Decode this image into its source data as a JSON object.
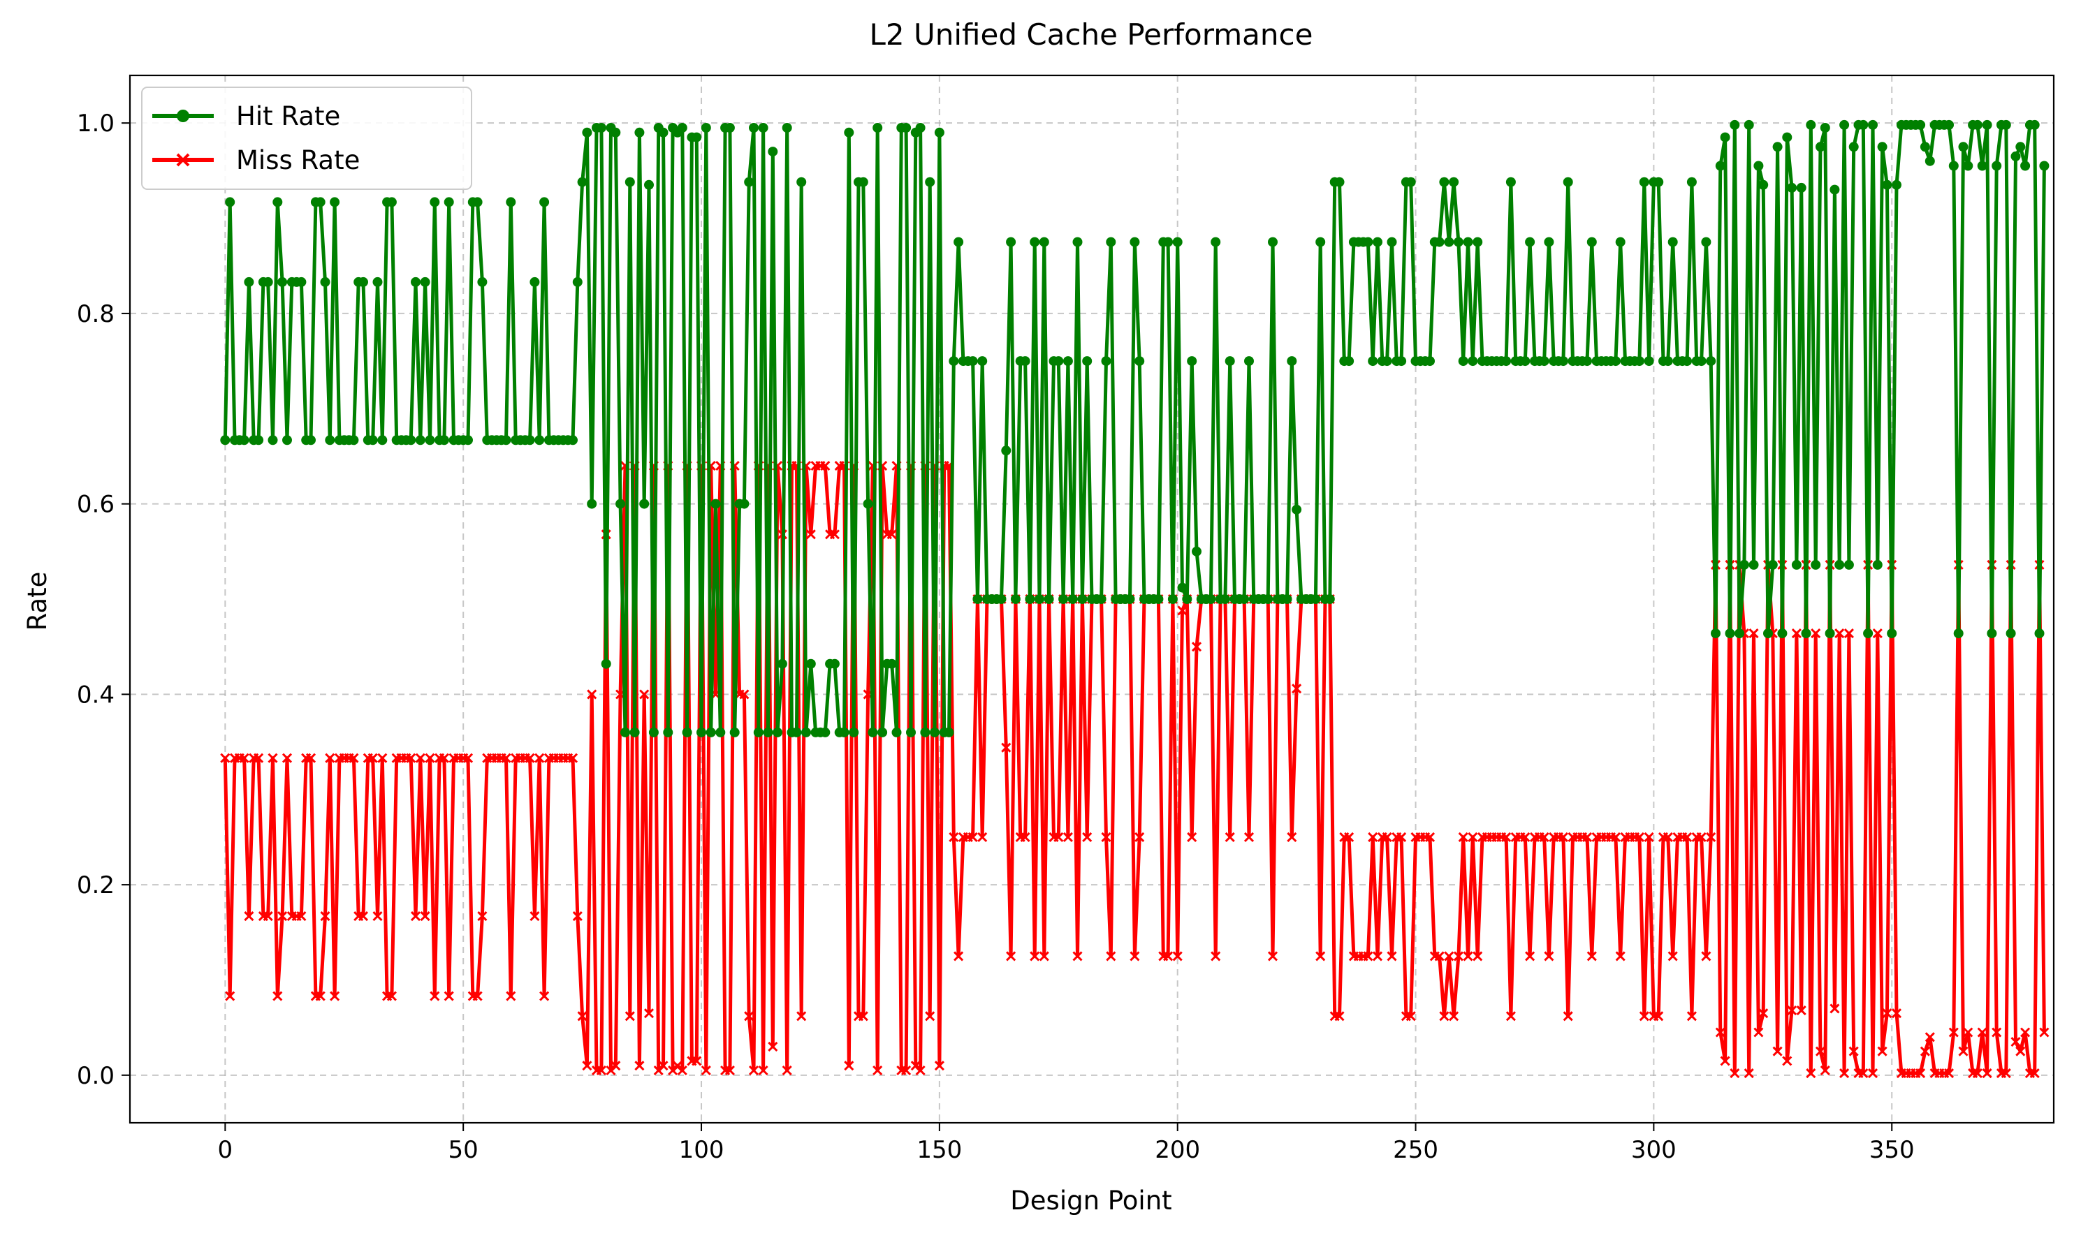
{
  "chart_data": {
    "type": "line",
    "title": "L2 Unified Cache Performance",
    "xlabel": "Design Point",
    "ylabel": "Rate",
    "xlim": [
      -20,
      384
    ],
    "ylim": [
      -0.05,
      1.05
    ],
    "x_ticks": [
      0,
      50,
      100,
      150,
      200,
      250,
      300,
      350
    ],
    "y_ticks": [
      0.0,
      0.2,
      0.4,
      0.6,
      0.8,
      1.0
    ],
    "grid": true,
    "legend_position": "top-left",
    "series": [
      {
        "name": "Hit Rate",
        "color": "#008000",
        "marker": "circle",
        "values": [
          0.667,
          0.917,
          0.667,
          0.667,
          0.667,
          0.833,
          0.667,
          0.667,
          0.833,
          0.833,
          0.667,
          0.917,
          0.833,
          0.667,
          0.833,
          0.833,
          0.833,
          0.667,
          0.667,
          0.917,
          0.917,
          0.833,
          0.667,
          0.917,
          0.667,
          0.667,
          0.667,
          0.667,
          0.833,
          0.833,
          0.667,
          0.667,
          0.833,
          0.667,
          0.917,
          0.917,
          0.667,
          0.667,
          0.667,
          0.667,
          0.833,
          0.667,
          0.833,
          0.667,
          0.917,
          0.667,
          0.667,
          0.917,
          0.667,
          0.667,
          0.667,
          0.667,
          0.917,
          0.917,
          0.833,
          0.667,
          0.667,
          0.667,
          0.667,
          0.667,
          0.917,
          0.667,
          0.667,
          0.667,
          0.667,
          0.833,
          0.667,
          0.917,
          0.667,
          0.667,
          0.667,
          0.667,
          0.667,
          0.667,
          0.833,
          0.938,
          0.99,
          0.6,
          0.995,
          0.995,
          0.432,
          0.995,
          0.99,
          0.6,
          0.36,
          0.938,
          0.36,
          0.99,
          0.6,
          0.935,
          0.36,
          0.995,
          0.99,
          0.36,
          0.995,
          0.99,
          0.995,
          0.36,
          0.985,
          0.985,
          0.36,
          0.995,
          0.36,
          0.6,
          0.36,
          0.995,
          0.995,
          0.36,
          0.6,
          0.6,
          0.938,
          0.995,
          0.36,
          0.995,
          0.36,
          0.97,
          0.36,
          0.432,
          0.995,
          0.36,
          0.36,
          0.938,
          0.36,
          0.432,
          0.36,
          0.36,
          0.36,
          0.432,
          0.432,
          0.36,
          0.36,
          0.99,
          0.36,
          0.938,
          0.938,
          0.6,
          0.36,
          0.995,
          0.36,
          0.432,
          0.432,
          0.36,
          0.995,
          0.995,
          0.36,
          0.99,
          0.995,
          0.36,
          0.938,
          0.36,
          0.99,
          0.36,
          0.36,
          0.75,
          0.875,
          0.75,
          0.75,
          0.75,
          0.5,
          0.75,
          0.5,
          0.5,
          0.5,
          0.5,
          0.656,
          0.875,
          0.5,
          0.75,
          0.75,
          0.5,
          0.875,
          0.5,
          0.875,
          0.5,
          0.75,
          0.75,
          0.5,
          0.75,
          0.5,
          0.875,
          0.5,
          0.75,
          0.5,
          0.5,
          0.5,
          0.75,
          0.875,
          0.5,
          0.5,
          0.5,
          0.5,
          0.875,
          0.75,
          0.5,
          0.5,
          0.5,
          0.5,
          0.875,
          0.875,
          0.5,
          0.875,
          0.512,
          0.5,
          0.75,
          0.55,
          0.5,
          0.5,
          0.5,
          0.875,
          0.5,
          0.5,
          0.75,
          0.5,
          0.5,
          0.5,
          0.75,
          0.5,
          0.5,
          0.5,
          0.5,
          0.875,
          0.5,
          0.5,
          0.5,
          0.75,
          0.594,
          0.5,
          0.5,
          0.5,
          0.5,
          0.875,
          0.5,
          0.5,
          0.938,
          0.938,
          0.75,
          0.75,
          0.875,
          0.875,
          0.875,
          0.875,
          0.75,
          0.875,
          0.75,
          0.75,
          0.875,
          0.75,
          0.75,
          0.938,
          0.938,
          0.75,
          0.75,
          0.75,
          0.75,
          0.875,
          0.875,
          0.938,
          0.875,
          0.938,
          0.875,
          0.75,
          0.875,
          0.75,
          0.875,
          0.75,
          0.75,
          0.75,
          0.75,
          0.75,
          0.75,
          0.938,
          0.75,
          0.75,
          0.75,
          0.875,
          0.75,
          0.75,
          0.75,
          0.875,
          0.75,
          0.75,
          0.75,
          0.938,
          0.75,
          0.75,
          0.75,
          0.75,
          0.875,
          0.75,
          0.75,
          0.75,
          0.75,
          0.75,
          0.875,
          0.75,
          0.75,
          0.75,
          0.75,
          0.938,
          0.75,
          0.938,
          0.938,
          0.75,
          0.75,
          0.875,
          0.75,
          0.75,
          0.75,
          0.938,
          0.75,
          0.75,
          0.875,
          0.75,
          0.464,
          0.955,
          0.985,
          0.464,
          0.998,
          0.464,
          0.536,
          0.998,
          0.536,
          0.955,
          0.935,
          0.464,
          0.536,
          0.975,
          0.464,
          0.985,
          0.932,
          0.536,
          0.932,
          0.464,
          0.998,
          0.536,
          0.975,
          0.995,
          0.464,
          0.93,
          0.536,
          0.998,
          0.536,
          0.975,
          0.998,
          0.998,
          0.464,
          0.998,
          0.536,
          0.975,
          0.935,
          0.464,
          0.935,
          0.998,
          0.998,
          0.998,
          0.998,
          0.998,
          0.975,
          0.96,
          0.998,
          0.998,
          0.998,
          0.998,
          0.955,
          0.464,
          0.975,
          0.955,
          0.998,
          0.998,
          0.955,
          0.998,
          0.464,
          0.955,
          0.998,
          0.998,
          0.464,
          0.965,
          0.975,
          0.955,
          0.998,
          0.998,
          0.464,
          0.955
        ]
      },
      {
        "name": "Miss Rate",
        "color": "#ff0000",
        "marker": "x",
        "values": [
          0.333,
          0.083,
          0.333,
          0.333,
          0.333,
          0.167,
          0.333,
          0.333,
          0.167,
          0.167,
          0.333,
          0.083,
          0.167,
          0.333,
          0.167,
          0.167,
          0.167,
          0.333,
          0.333,
          0.083,
          0.083,
          0.167,
          0.333,
          0.083,
          0.333,
          0.333,
          0.333,
          0.333,
          0.167,
          0.167,
          0.333,
          0.333,
          0.167,
          0.333,
          0.083,
          0.083,
          0.333,
          0.333,
          0.333,
          0.333,
          0.167,
          0.333,
          0.167,
          0.333,
          0.083,
          0.333,
          0.333,
          0.083,
          0.333,
          0.333,
          0.333,
          0.333,
          0.083,
          0.083,
          0.167,
          0.333,
          0.333,
          0.333,
          0.333,
          0.333,
          0.083,
          0.333,
          0.333,
          0.333,
          0.333,
          0.167,
          0.333,
          0.083,
          0.333,
          0.333,
          0.333,
          0.333,
          0.333,
          0.333,
          0.167,
          0.062,
          0.01,
          0.4,
          0.005,
          0.005,
          0.568,
          0.005,
          0.01,
          0.4,
          0.64,
          0.062,
          0.64,
          0.01,
          0.4,
          0.065,
          0.64,
          0.005,
          0.01,
          0.64,
          0.005,
          0.01,
          0.005,
          0.64,
          0.015,
          0.015,
          0.64,
          0.005,
          0.64,
          0.4,
          0.64,
          0.005,
          0.005,
          0.64,
          0.4,
          0.4,
          0.062,
          0.005,
          0.64,
          0.005,
          0.64,
          0.03,
          0.64,
          0.568,
          0.005,
          0.64,
          0.64,
          0.062,
          0.64,
          0.568,
          0.64,
          0.64,
          0.64,
          0.568,
          0.568,
          0.64,
          0.64,
          0.01,
          0.64,
          0.062,
          0.062,
          0.4,
          0.64,
          0.005,
          0.64,
          0.568,
          0.568,
          0.64,
          0.005,
          0.005,
          0.64,
          0.01,
          0.005,
          0.64,
          0.062,
          0.64,
          0.01,
          0.64,
          0.64,
          0.25,
          0.125,
          0.25,
          0.25,
          0.25,
          0.5,
          0.25,
          0.5,
          0.5,
          0.5,
          0.5,
          0.344,
          0.125,
          0.5,
          0.25,
          0.25,
          0.5,
          0.125,
          0.5,
          0.125,
          0.5,
          0.25,
          0.25,
          0.5,
          0.25,
          0.5,
          0.125,
          0.5,
          0.25,
          0.5,
          0.5,
          0.5,
          0.25,
          0.125,
          0.5,
          0.5,
          0.5,
          0.5,
          0.125,
          0.25,
          0.5,
          0.5,
          0.5,
          0.5,
          0.125,
          0.125,
          0.5,
          0.125,
          0.488,
          0.5,
          0.25,
          0.45,
          0.5,
          0.5,
          0.5,
          0.125,
          0.5,
          0.5,
          0.25,
          0.5,
          0.5,
          0.5,
          0.25,
          0.5,
          0.5,
          0.5,
          0.5,
          0.125,
          0.5,
          0.5,
          0.5,
          0.25,
          0.406,
          0.5,
          0.5,
          0.5,
          0.5,
          0.125,
          0.5,
          0.5,
          0.062,
          0.062,
          0.25,
          0.25,
          0.125,
          0.125,
          0.125,
          0.125,
          0.25,
          0.125,
          0.25,
          0.25,
          0.125,
          0.25,
          0.25,
          0.062,
          0.062,
          0.25,
          0.25,
          0.25,
          0.25,
          0.125,
          0.125,
          0.062,
          0.125,
          0.062,
          0.125,
          0.25,
          0.125,
          0.25,
          0.125,
          0.25,
          0.25,
          0.25,
          0.25,
          0.25,
          0.25,
          0.062,
          0.25,
          0.25,
          0.25,
          0.125,
          0.25,
          0.25,
          0.25,
          0.125,
          0.25,
          0.25,
          0.25,
          0.062,
          0.25,
          0.25,
          0.25,
          0.25,
          0.125,
          0.25,
          0.25,
          0.25,
          0.25,
          0.25,
          0.125,
          0.25,
          0.25,
          0.25,
          0.25,
          0.062,
          0.25,
          0.062,
          0.062,
          0.25,
          0.25,
          0.125,
          0.25,
          0.25,
          0.25,
          0.062,
          0.25,
          0.25,
          0.125,
          0.25,
          0.536,
          0.045,
          0.015,
          0.536,
          0.002,
          0.536,
          0.464,
          0.002,
          0.464,
          0.045,
          0.065,
          0.536,
          0.464,
          0.025,
          0.536,
          0.015,
          0.068,
          0.464,
          0.068,
          0.536,
          0.002,
          0.464,
          0.025,
          0.005,
          0.536,
          0.07,
          0.464,
          0.002,
          0.464,
          0.025,
          0.002,
          0.002,
          0.536,
          0.002,
          0.464,
          0.025,
          0.065,
          0.536,
          0.065,
          0.002,
          0.002,
          0.002,
          0.002,
          0.002,
          0.025,
          0.04,
          0.002,
          0.002,
          0.002,
          0.002,
          0.045,
          0.536,
          0.025,
          0.045,
          0.002,
          0.002,
          0.045,
          0.002,
          0.536,
          0.045,
          0.002,
          0.002,
          0.536,
          0.035,
          0.025,
          0.045,
          0.002,
          0.002,
          0.536,
          0.045
        ]
      }
    ]
  }
}
